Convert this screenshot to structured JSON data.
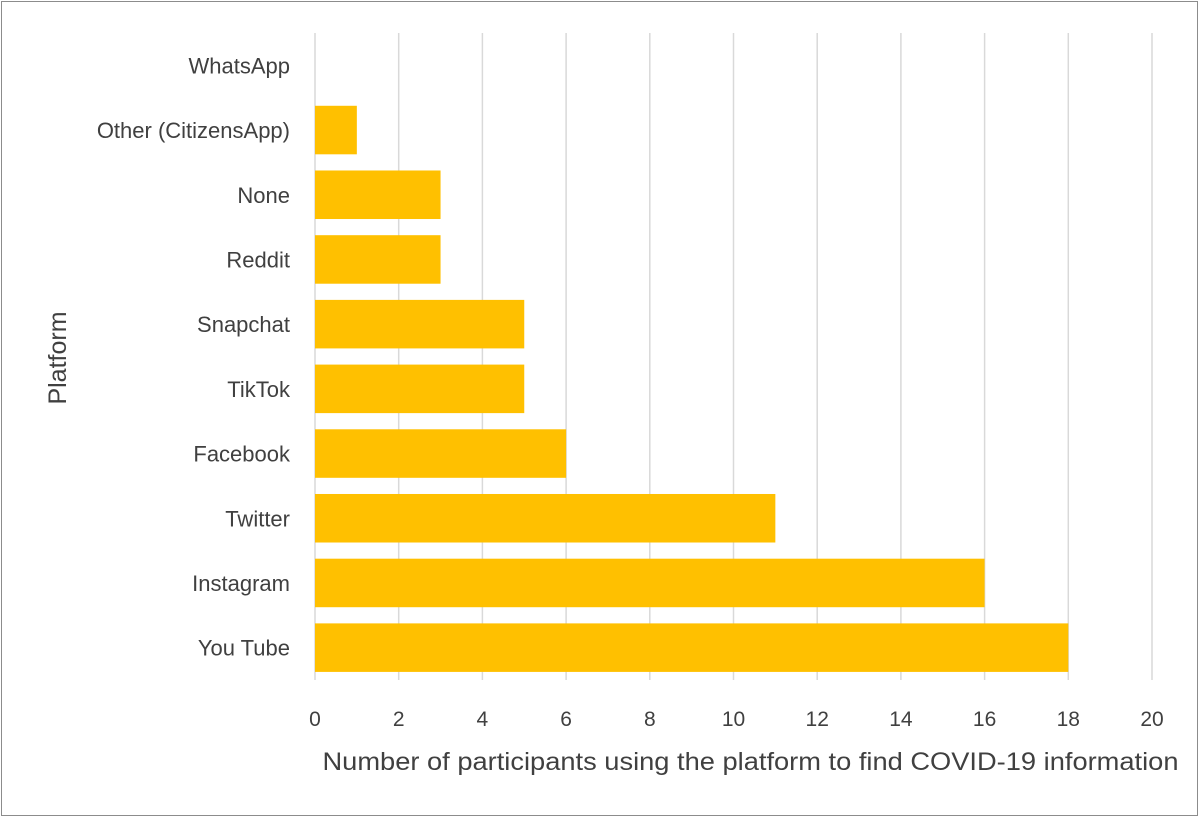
{
  "chart_data": {
    "type": "bar",
    "orientation": "horizontal",
    "categories": [
      "WhatsApp",
      "Other (CitizensApp)",
      "None",
      "Reddit",
      "Snapchat",
      "TikTok",
      "Facebook",
      "Twitter",
      "Instagram",
      "You Tube"
    ],
    "values": [
      0,
      1,
      3,
      3,
      5,
      5,
      6,
      11,
      16,
      18
    ],
    "xlabel": "Number of participants using the platform to find COVID-19 information",
    "ylabel": "Platform",
    "xlim": [
      0,
      20
    ],
    "x_ticks": [
      "0",
      "2",
      "4",
      "6",
      "8",
      "10",
      "12",
      "14",
      "16",
      "18",
      "20"
    ],
    "grid": "vertical",
    "legend": "none",
    "bar_color": "#FFC000",
    "grid_color": "#d9d9d9",
    "text_color": "#404040"
  }
}
